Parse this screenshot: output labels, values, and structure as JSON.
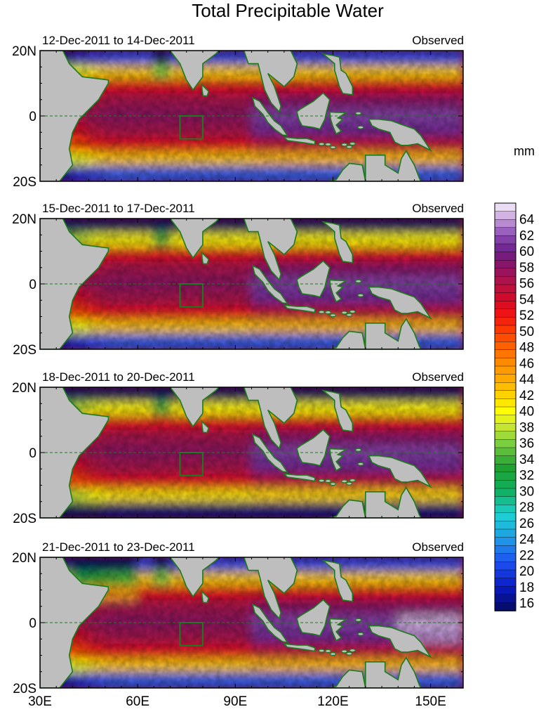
{
  "chart_data": {
    "type": "heatmap",
    "title": "Total Precipitable Water",
    "variable": "Total Precipitable Water",
    "units": "mm",
    "x_ticks": [
      "30E",
      "60E",
      "90E",
      "120E",
      "150E"
    ],
    "x_tick_values": [
      30,
      60,
      90,
      120,
      150
    ],
    "y_ticks": [
      "20N",
      "0",
      "20S"
    ],
    "y_tick_values": [
      20,
      0,
      -20
    ],
    "xlim": [
      30,
      160
    ],
    "ylim": [
      -20,
      20
    ],
    "box_region": {
      "lon": [
        73,
        80
      ],
      "lat": [
        -7,
        0
      ]
    },
    "panels": [
      {
        "period": "12-Dec-2011 to 14-Dec-2011",
        "label": "Observed"
      },
      {
        "period": "15-Dec-2011 to 17-Dec-2011",
        "label": "Observed"
      },
      {
        "period": "18-Dec-2011 to 20-Dec-2011",
        "label": "Observed"
      },
      {
        "period": "21-Dec-2011 to 23-Dec-2011",
        "label": "Observed"
      }
    ],
    "colorbar": {
      "labels": [
        "64",
        "62",
        "60",
        "58",
        "56",
        "54",
        "52",
        "50",
        "48",
        "46",
        "44",
        "42",
        "40",
        "38",
        "36",
        "34",
        "32",
        "30",
        "28",
        "26",
        "24",
        "22",
        "20",
        "18",
        "16"
      ],
      "values": [
        64,
        62,
        60,
        58,
        56,
        54,
        52,
        50,
        48,
        46,
        44,
        42,
        40,
        38,
        36,
        34,
        32,
        30,
        28,
        26,
        24,
        22,
        20,
        18,
        16
      ],
      "range": [
        15,
        66
      ]
    }
  }
}
